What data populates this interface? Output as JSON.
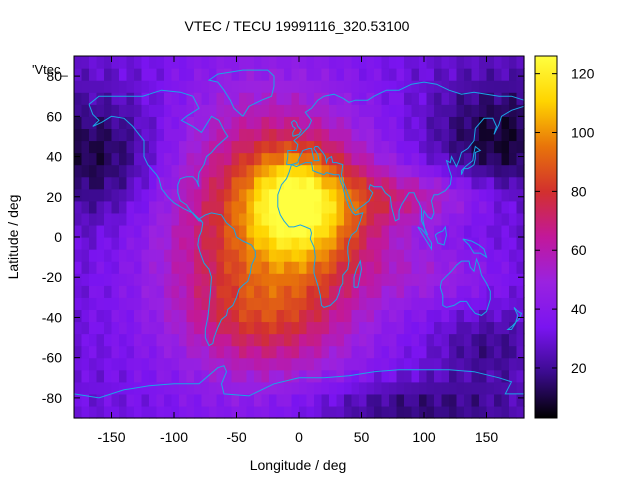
{
  "chart_data": {
    "type": "heatmap",
    "title": "VTEC / TECU 19991116_320.53100",
    "xlabel": "Longitude / deg",
    "ylabel": "Latitude / deg",
    "xlim": [
      -180,
      180
    ],
    "ylim": [
      -90,
      90
    ],
    "x_ticks": [
      -150,
      -100,
      -50,
      0,
      50,
      100,
      150
    ],
    "y_ticks": [
      -80,
      -60,
      -40,
      -20,
      0,
      20,
      40,
      60,
      80
    ],
    "colorbar": {
      "min": 3,
      "max": 126,
      "ticks": [
        20,
        40,
        60,
        80,
        100,
        120
      ]
    },
    "key_label": "'Vtec_",
    "colormap": [
      "#000000",
      "#3b0b8e",
      "#7a14f0",
      "#9a22e0",
      "#c2189a",
      "#d2302e",
      "#e8740a",
      "#ffd400",
      "#ffff40"
    ],
    "coastline_color": "#19a6e6",
    "peaks": [
      {
        "lon": -5,
        "lat": 18,
        "vtec": 124,
        "note": ""
      },
      {
        "lon": 20,
        "lat": 10,
        "vtec": 110,
        "note": ""
      }
    ],
    "grid": false
  }
}
